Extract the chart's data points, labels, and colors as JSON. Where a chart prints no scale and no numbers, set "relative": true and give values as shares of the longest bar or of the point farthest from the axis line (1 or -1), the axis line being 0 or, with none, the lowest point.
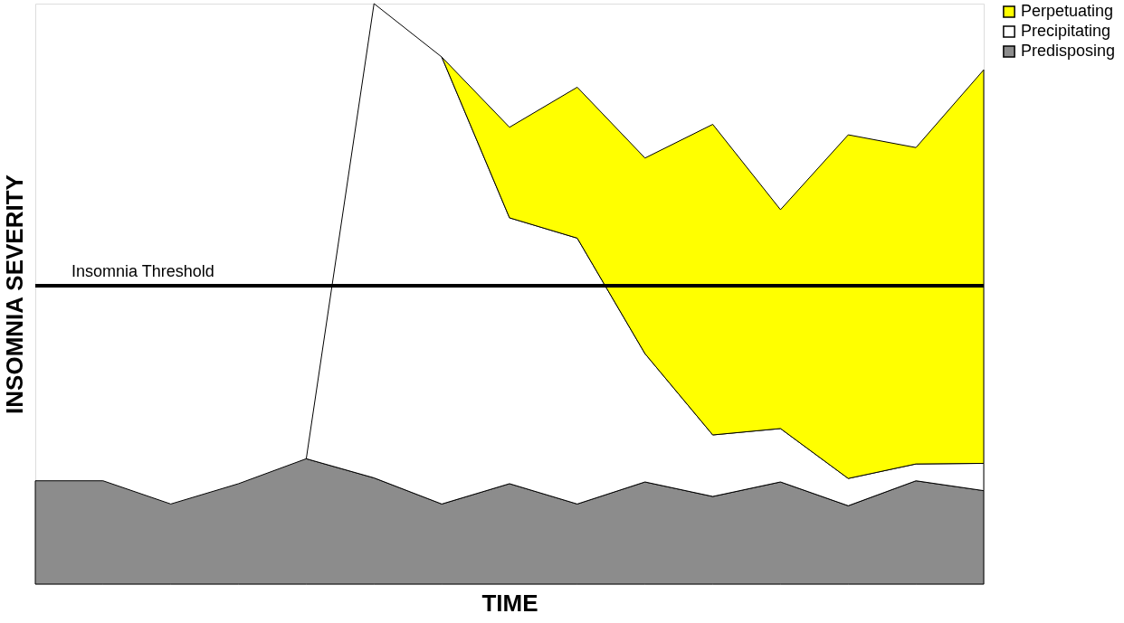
{
  "chart_data": {
    "type": "area",
    "relative": true,
    "stacked": true,
    "xlabel": "TIME",
    "ylabel": "INSOMNIA SEVERITY",
    "legend": "right",
    "categories": [
      null,
      null,
      null,
      null,
      null,
      null,
      null,
      null,
      null,
      null,
      null,
      null,
      null,
      null,
      null
    ],
    "series": [
      {
        "name": "Predisposing",
        "color": "#8c8c8c",
        "values": [
          0.178,
          0.178,
          0.138,
          0.173,
          0.216,
          0.183,
          0.138,
          0.173,
          0.138,
          0.176,
          0.151,
          0.176,
          0.135,
          0.178,
          0.161
        ]
      },
      {
        "name": "Precipitating",
        "color": "#ffffff",
        "values": [
          null,
          null,
          null,
          null,
          0,
          0.817,
          0.77,
          0.458,
          0.458,
          0.221,
          0.106,
          0.092,
          0.047,
          0.029,
          0.047
        ]
      },
      {
        "name": "Perpetuating",
        "color": "#ffff00",
        "values": [
          null,
          null,
          null,
          null,
          null,
          null,
          0,
          0.156,
          0.26,
          0.337,
          0.535,
          0.377,
          0.592,
          0.545,
          0.678
        ]
      }
    ],
    "ref_lines": [
      {
        "axis": "y",
        "value": 0.514,
        "label": "Insomnia Threshold",
        "color": "#000000"
      }
    ]
  }
}
